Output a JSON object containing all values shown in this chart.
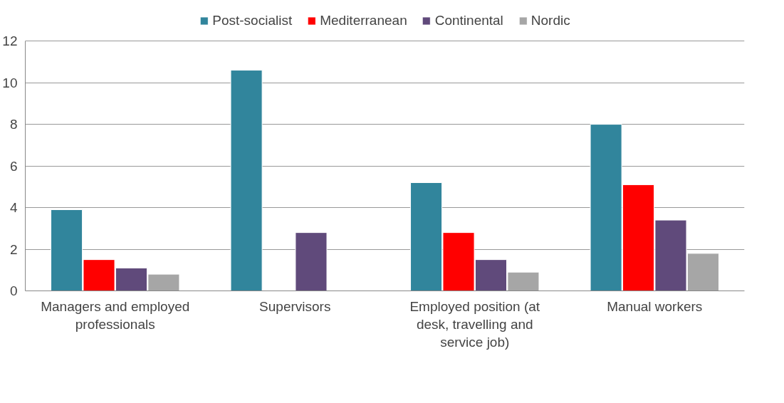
{
  "chart_data": {
    "type": "bar",
    "categories": [
      "Managers and employed professionals",
      "Supervisors",
      "Employed position (at desk, travelling and service job)",
      "Manual workers"
    ],
    "series": [
      {
        "name": "Post-socialist",
        "color": "#31859c",
        "values": [
          3.9,
          10.6,
          5.2,
          8.0
        ]
      },
      {
        "name": "Mediterranean",
        "color": "#ff0000",
        "values": [
          1.5,
          null,
          2.8,
          5.1
        ]
      },
      {
        "name": "Continental",
        "color": "#604a7b",
        "values": [
          1.1,
          2.8,
          1.5,
          3.4
        ]
      },
      {
        "name": "Nordic",
        "color": "#a6a6a6",
        "values": [
          0.8,
          null,
          0.9,
          1.8
        ]
      }
    ],
    "ylim": [
      0,
      12
    ],
    "yticks": [
      0,
      2,
      4,
      6,
      8,
      10,
      12
    ],
    "grid": "y",
    "legend": "top"
  }
}
